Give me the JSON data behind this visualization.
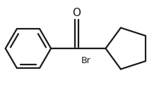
{
  "background_color": "#ffffff",
  "line_color": "#1a1a1a",
  "line_width": 1.6,
  "text_color": "#1a1a1a",
  "label_O": "O",
  "label_Br": "Br",
  "figsize": [
    2.08,
    1.34
  ],
  "dpi": 100,
  "xlim": [
    -2.6,
    2.4
  ],
  "ylim": [
    -1.4,
    1.5
  ]
}
